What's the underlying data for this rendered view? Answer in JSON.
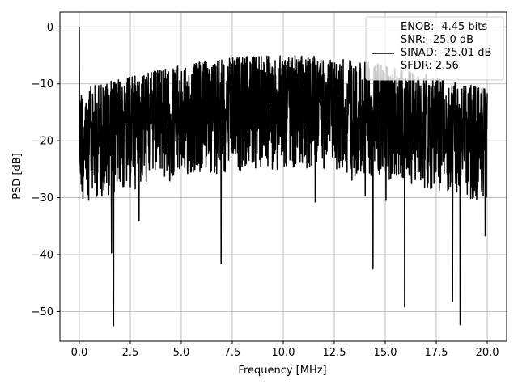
{
  "chart_data": {
    "type": "line",
    "title": "",
    "xlabel": "Frequency [MHz]",
    "ylabel": "PSD [dB]",
    "xlim": [
      -0.95,
      20.95
    ],
    "ylim": [
      -55.2,
      2.6
    ],
    "x_ticks": [
      0.0,
      2.5,
      5.0,
      7.5,
      10.0,
      12.5,
      15.0,
      17.5,
      20.0
    ],
    "x_tick_labels": [
      "0.0",
      "2.5",
      "5.0",
      "7.5",
      "10.0",
      "12.5",
      "15.0",
      "17.5",
      "20.0"
    ],
    "y_ticks": [
      0,
      -10,
      -20,
      -30,
      -40,
      -50
    ],
    "y_tick_labels": [
      "0",
      "−10",
      "−20",
      "−30",
      "−40",
      "−50"
    ],
    "grid": true,
    "legend_position": "top-right",
    "line_color": "#000000",
    "series": [
      {
        "legend_lines": [
          "ENOB: -4.45 bits",
          "SNR: -25.0 dB",
          "SINAD: -25.01 dB",
          "SFDR: 2.56"
        ],
        "x_range": [
          0.0,
          20.0
        ],
        "points": 2000,
        "y_range_observed": [
          -52.5,
          0.0
        ],
        "notable_points": [
          {
            "x": 0.0,
            "y": 0.0
          },
          {
            "x": 1.58,
            "y": -39.7
          },
          {
            "x": 1.68,
            "y": -52.5
          },
          {
            "x": 6.95,
            "y": -41.6
          },
          {
            "x": 14.4,
            "y": -42.5
          },
          {
            "x": 15.95,
            "y": -49.2
          },
          {
            "x": 18.3,
            "y": -48.2
          },
          {
            "x": 18.67,
            "y": -52.3
          },
          {
            "x": 19.9,
            "y": -36.7
          }
        ]
      }
    ]
  }
}
